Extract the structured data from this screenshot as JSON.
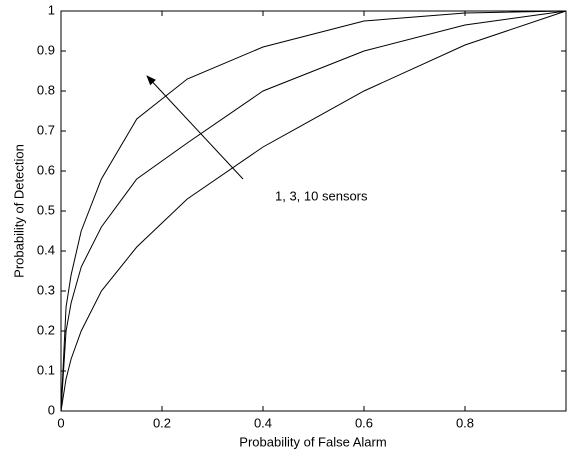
{
  "chart_data": {
    "type": "line",
    "xlabel": "Probability of False Alarm",
    "ylabel": "Probability of Detection",
    "annotation": "1, 3, 10 sensors",
    "x": [
      0,
      0.01,
      0.02,
      0.04,
      0.08,
      0.15,
      0.25,
      0.4,
      0.6,
      0.8,
      1
    ],
    "series": [
      {
        "color": "#000000",
        "values": [
          0,
          0.08,
          0.13,
          0.2,
          0.3,
          0.41,
          0.53,
          0.66,
          0.8,
          0.915,
          1
        ]
      },
      {
        "color": "#000000",
        "values": [
          0,
          0.2,
          0.27,
          0.36,
          0.46,
          0.58,
          0.67,
          0.8,
          0.9,
          0.965,
          1
        ]
      },
      {
        "color": "#000000",
        "values": [
          0,
          0.26,
          0.34,
          0.45,
          0.58,
          0.73,
          0.83,
          0.91,
          0.975,
          0.995,
          1
        ]
      }
    ],
    "xlim": [
      0,
      1
    ],
    "ylim": [
      0,
      1
    ],
    "xticks": [
      0,
      0.2,
      0.4,
      0.6,
      0.8
    ],
    "yticks": [
      0,
      0.1,
      0.2,
      0.3,
      0.4,
      0.5,
      0.6,
      0.7,
      0.8,
      0.9,
      1
    ],
    "grid": false
  }
}
